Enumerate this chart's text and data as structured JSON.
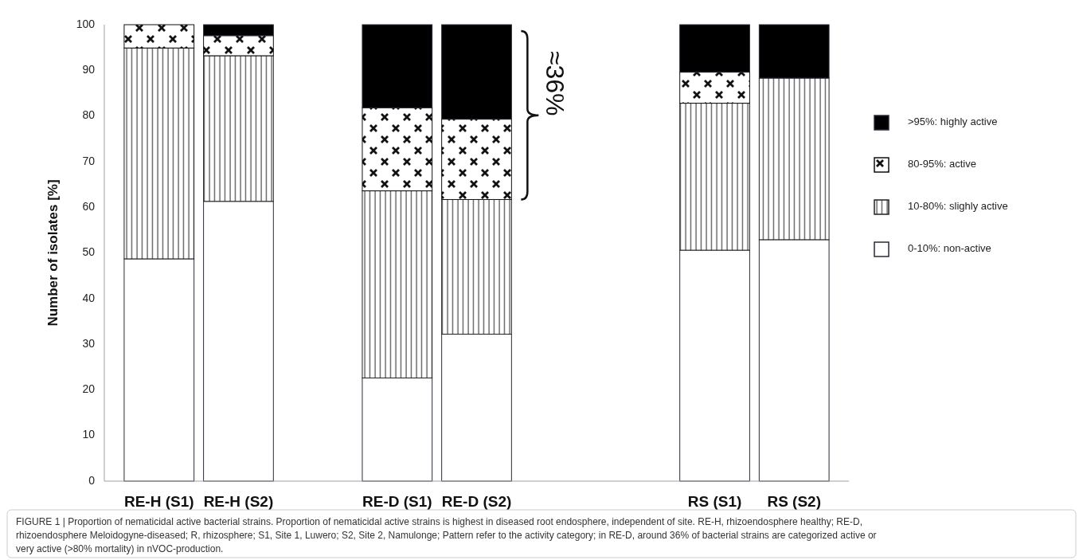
{
  "chart_data": {
    "type": "bar",
    "stacked": true,
    "ylabel": "Number of isolates [%]",
    "categories": [
      "RE-H (S1)",
      "RE-H (S2)",
      null,
      "RE-D (S1)",
      "RE-D (S2)",
      null,
      null,
      "RS (S1)",
      "RS (S2)"
    ],
    "ylim": [
      0,
      100
    ],
    "yticks": [
      0,
      10,
      20,
      30,
      40,
      50,
      60,
      70,
      80,
      90,
      100
    ],
    "legend": "right",
    "grid": false,
    "series": [
      {
        "name": "0-10%: non-active",
        "color": "#ffffff",
        "values": [
          48.7,
          61.3,
          null,
          22.6,
          32.2,
          null,
          null,
          50.6,
          52.9
        ]
      },
      {
        "name": "10-80%: slighly active",
        "color": "#222222",
        "values": [
          46.2,
          31.9,
          null,
          41.0,
          29.5,
          null,
          null,
          32.2,
          35.4
        ]
      },
      {
        "name": "80-95%: active",
        "color": "#111111",
        "values": [
          5.1,
          4.4,
          null,
          18.2,
          17.6,
          null,
          null,
          6.8,
          0
        ]
      },
      {
        "name": ">95%: highly active",
        "color": "#000000",
        "values": [
          0,
          2.4,
          null,
          18.2,
          20.7,
          null,
          null,
          10.4,
          11.7
        ]
      }
    ],
    "annotations": [
      "≈36%",
      "FIGURE 1 | Proportion of nematicidal active bacterial strains. Proportion of nematicidal active strains is highest in diseased root endosphere, independent of site. RE-H, rhizoendosphere healthy; RE-D, rhizoendosphere Meloidogyne-diseased; R, rhizosphere; S1, Site 1, Luwero; S2, Site 2, Namulonge; Pattern refer to the activity category; in RE-D, around 36% of bacterial strains are categorized active or very active (>80% mortality) in nVOC-production."
    ]
  }
}
